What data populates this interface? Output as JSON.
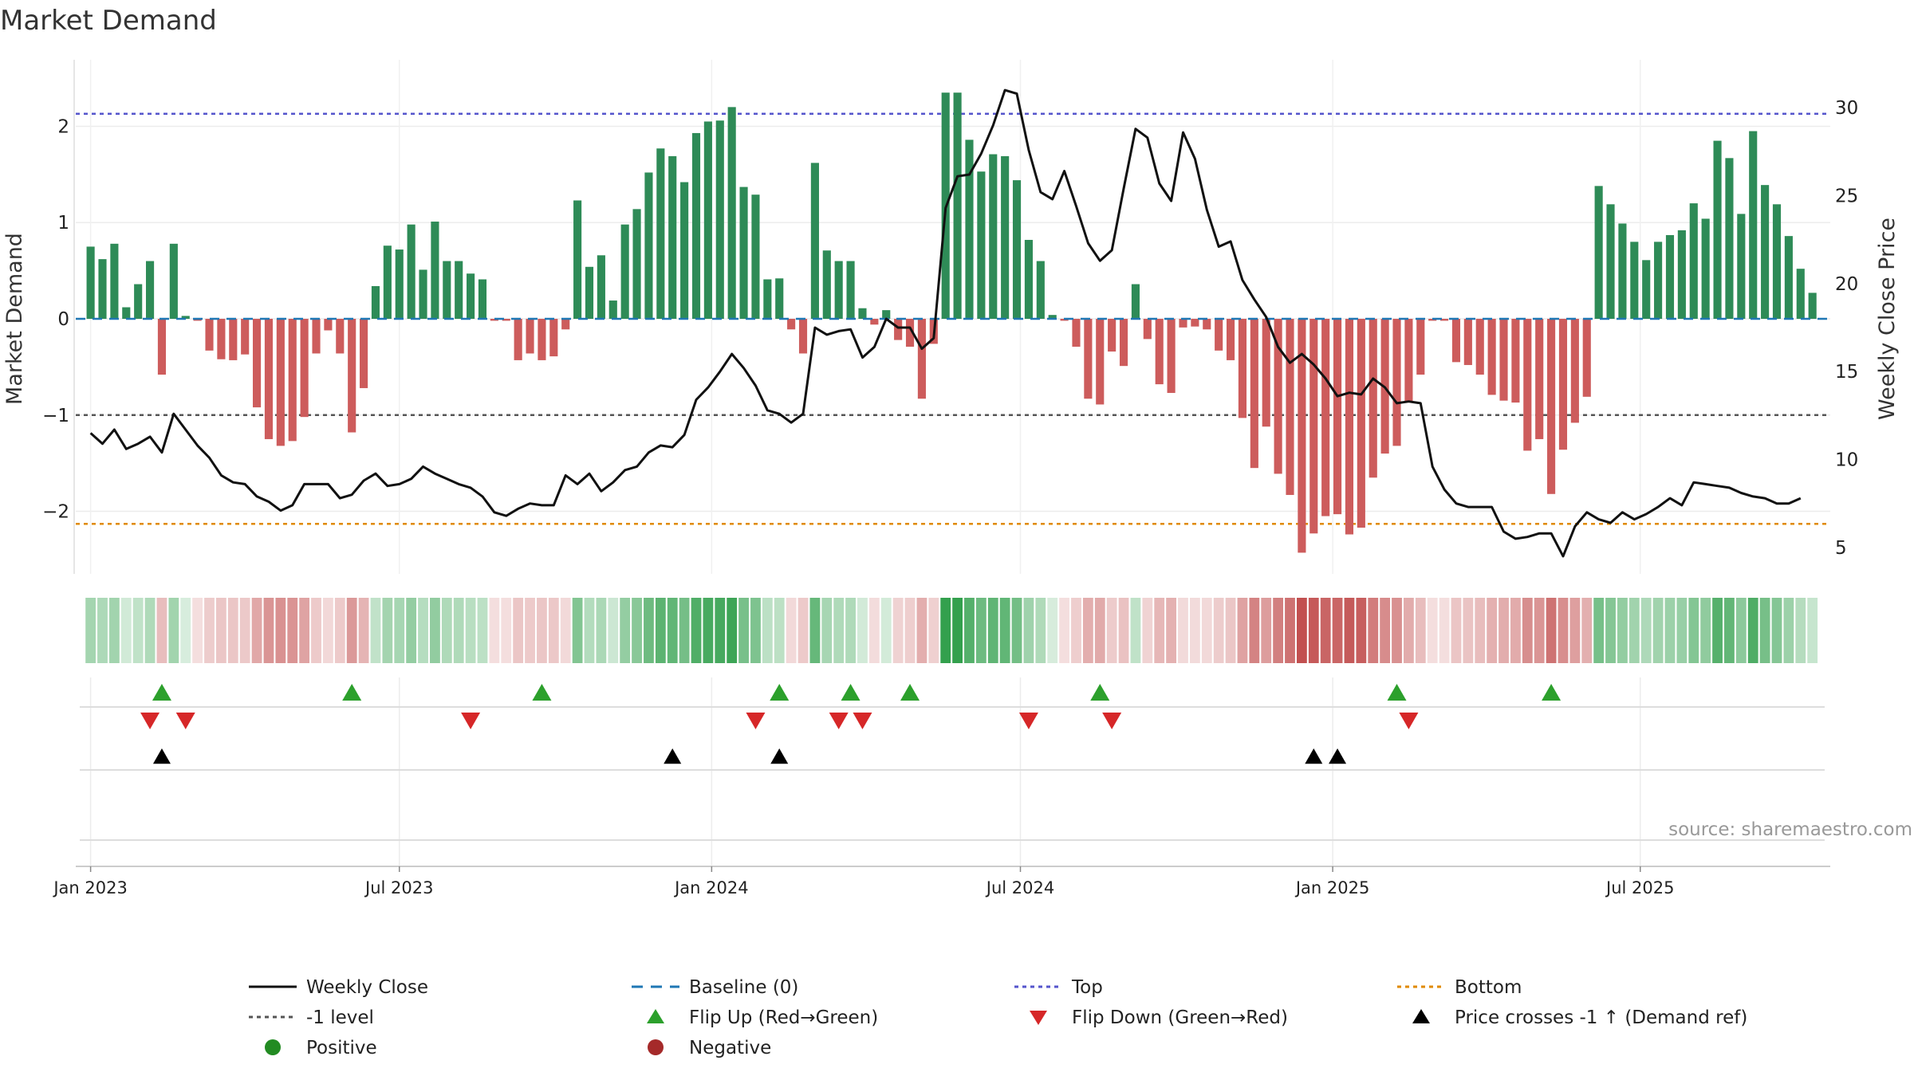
{
  "chart_data": {
    "type": "bar",
    "title": "Market Demand",
    "ylabel_left": "Market Demand",
    "ylabel_right": "Weekly Close Price",
    "ylim_left": [
      -2.65,
      2.65
    ],
    "ylim_right": [
      3.5,
      32.5
    ],
    "yticks_left": [
      {
        "v": -2,
        "label": "−2"
      },
      {
        "v": -1,
        "label": "−1"
      },
      {
        "v": 0,
        "label": "0"
      },
      {
        "v": 1,
        "label": "1"
      },
      {
        "v": 2,
        "label": "2"
      }
    ],
    "yticks_right": [
      {
        "v": 5,
        "label": "5"
      },
      {
        "v": 10,
        "label": "10"
      },
      {
        "v": 15,
        "label": "15"
      },
      {
        "v": 20,
        "label": "20"
      },
      {
        "v": 25,
        "label": "25"
      },
      {
        "v": 30,
        "label": "30"
      }
    ],
    "x_start_week": -1.25,
    "x_end_week": 146.5,
    "x_ticks": [
      {
        "label": "Jan 2023",
        "week": 0
      },
      {
        "label": "Jul 2023",
        "week": 26
      },
      {
        "label": "Jan 2024",
        "week": 52.3
      },
      {
        "label": "Jul 2024",
        "week": 78.3
      },
      {
        "label": "Jan 2025",
        "week": 104.6
      },
      {
        "label": "Jul 2025",
        "week": 130.5
      }
    ],
    "levels": {
      "top": 2.13,
      "bottom": -2.13,
      "minus_one": -1,
      "baseline": 0
    },
    "demand": [
      0.75,
      0.62,
      0.78,
      0.12,
      0.36,
      0.6,
      -0.58,
      0.78,
      0.03,
      -0.02,
      -0.33,
      -0.42,
      -0.43,
      -0.37,
      -0.92,
      -1.25,
      -1.32,
      -1.27,
      -1.02,
      -0.36,
      -0.12,
      -0.36,
      -1.18,
      -0.72,
      0.34,
      0.76,
      0.72,
      0.98,
      0.51,
      1.01,
      0.6,
      0.6,
      0.47,
      0.41,
      -0.02,
      -0.02,
      -0.43,
      -0.36,
      -0.43,
      -0.39,
      -0.11,
      1.23,
      0.54,
      0.66,
      0.19,
      0.98,
      1.14,
      1.52,
      1.77,
      1.69,
      1.42,
      1.93,
      2.05,
      2.06,
      2.2,
      1.37,
      1.29,
      0.41,
      0.42,
      -0.11,
      -0.36,
      1.62,
      0.71,
      0.6,
      0.6,
      0.11,
      -0.06,
      0.09,
      -0.22,
      -0.29,
      -0.83,
      -0.26,
      2.35,
      2.35,
      1.86,
      1.53,
      1.71,
      1.69,
      1.44,
      0.82,
      0.6,
      0.04,
      -0.02,
      -0.29,
      -0.83,
      -0.89,
      -0.34,
      -0.49,
      0.36,
      -0.21,
      -0.68,
      -0.77,
      -0.09,
      -0.08,
      -0.11,
      -0.33,
      -0.43,
      -1.03,
      -1.55,
      -1.12,
      -1.61,
      -1.83,
      -2.43,
      -2.23,
      -2.05,
      -2.03,
      -2.24,
      -2.17,
      -1.65,
      -1.4,
      -1.32,
      -0.86,
      -0.58,
      -0.02,
      -0.02,
      -0.45,
      -0.48,
      -0.58,
      -0.79,
      -0.85,
      -0.87,
      -1.37,
      -1.25,
      -1.82,
      -1.36,
      -1.08,
      -0.81,
      1.38,
      1.19,
      0.99,
      0.8,
      0.61,
      0.8,
      0.87,
      0.92,
      1.2,
      1.04,
      1.85,
      1.67,
      1.09,
      1.95,
      1.39,
      1.19,
      0.86,
      0.52,
      0.27
    ],
    "close": [
      11.5,
      10.9,
      11.7,
      10.6,
      10.9,
      11.3,
      10.4,
      12.6,
      11.7,
      10.8,
      10.1,
      9.1,
      8.7,
      8.6,
      7.9,
      7.6,
      7.1,
      7.4,
      8.6,
      8.6,
      8.6,
      7.8,
      8.0,
      8.8,
      9.2,
      8.5,
      8.6,
      8.9,
      9.6,
      9.2,
      8.9,
      8.6,
      8.4,
      7.9,
      7.0,
      6.8,
      7.2,
      7.5,
      7.4,
      7.4,
      9.1,
      8.6,
      9.2,
      8.2,
      8.7,
      9.4,
      9.6,
      10.4,
      10.8,
      10.7,
      11.4,
      13.4,
      14.1,
      15.0,
      16.0,
      15.2,
      14.2,
      12.8,
      12.6,
      12.1,
      12.6,
      17.5,
      17.1,
      17.3,
      17.4,
      15.8,
      16.4,
      18.0,
      17.5,
      17.5,
      16.3,
      16.9,
      24.3,
      26.1,
      26.2,
      27.4,
      29.0,
      31.0,
      30.8,
      27.6,
      25.2,
      24.8,
      26.4,
      24.4,
      22.3,
      21.3,
      21.9,
      25.4,
      28.8,
      28.3,
      25.7,
      24.7,
      28.6,
      27.1,
      24.2,
      22.1,
      22.4,
      20.2,
      19.1,
      18.1,
      16.4,
      15.5,
      16.0,
      15.4,
      14.6,
      13.6,
      13.8,
      13.7,
      14.6,
      14.1,
      13.2,
      13.3,
      13.2,
      9.6,
      8.3,
      7.5,
      7.3,
      7.3,
      7.3,
      5.9,
      5.5,
      5.6,
      5.8,
      5.8,
      4.5,
      6.2,
      7.0,
      6.6,
      6.4,
      7.0,
      6.6,
      6.9,
      7.3,
      7.8,
      7.4,
      8.7,
      8.6,
      8.5,
      8.4,
      8.1,
      7.9,
      7.8,
      7.5,
      7.5,
      7.8
    ],
    "flip_up_weeks": [
      6,
      22,
      38,
      58,
      64,
      69,
      85,
      110,
      123
    ],
    "flip_down_weeks": [
      5,
      8,
      32,
      56,
      63,
      65,
      79,
      86,
      111
    ],
    "price_cross_weeks": [
      6,
      49,
      58,
      103,
      105
    ]
  },
  "source": "source: sharemaestro.com",
  "legend": [
    {
      "label": "Weekly Close",
      "symbol": "line",
      "color": "#111111"
    },
    {
      "label": "Baseline (0)",
      "symbol": "dash",
      "color": "#1f77b4"
    },
    {
      "label": "Top",
      "symbol": "dot",
      "color": "#5555cc"
    },
    {
      "label": "Bottom",
      "symbol": "dot",
      "color": "#e08a00"
    },
    {
      "label": "-1 level",
      "symbol": "dot",
      "color": "#555555"
    },
    {
      "label": "Flip Up (Red→Green)",
      "symbol": "tri-up",
      "color": "#2ca02c"
    },
    {
      "label": "Flip Down (Green→Red)",
      "symbol": "tri-down",
      "color": "#d62728"
    },
    {
      "label": "Price crosses -1 ↑ (Demand ref)",
      "symbol": "tri-up",
      "color": "#000000"
    },
    {
      "label": "Positive",
      "symbol": "circle",
      "color": "#228b22"
    },
    {
      "label": "Negative",
      "symbol": "circle",
      "color": "#a52a2a"
    }
  ],
  "colors": {
    "positive_bar": "#2e8b57",
    "negative_bar": "#cd5c5c",
    "close_line": "#111111",
    "top_line": "#5555cc",
    "bottom_line": "#e08a00",
    "minus_one_line": "#555555",
    "baseline": "#1f77b4",
    "flip_up": "#2ca02c",
    "flip_down": "#d62728",
    "price_cross": "#000000"
  }
}
